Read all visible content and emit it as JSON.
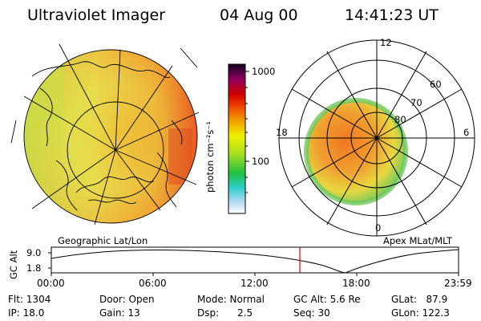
{
  "header": {
    "title": "Ultraviolet Imager",
    "date": "04 Aug 00",
    "time": "14:41:23 UT"
  },
  "colorbar": {
    "unit_label": "photon cm⁻²s⁻¹",
    "ticks": [
      "1000",
      "100"
    ]
  },
  "left_panel": {
    "caption": "Geographic Lat/Lon"
  },
  "right_panel": {
    "caption": "Apex MLat/MLT",
    "mlt_labels": [
      "12",
      "18",
      "6",
      "0"
    ],
    "mlat_labels": [
      "60",
      "70",
      "80"
    ]
  },
  "timeline": {
    "y_label": "GC Alt",
    "y_ticks": [
      "9.0",
      "1.8"
    ],
    "x_ticks": [
      "00:00",
      "06:00",
      "12:00",
      "18:00",
      "23:59"
    ],
    "marker_time": "14:41"
  },
  "status": {
    "flt": "Flt: 1304",
    "ip": "IP: 18.0",
    "door": "Door: Open",
    "gain": "Gain: 13",
    "mode": "Mode: Normal",
    "dsp": "Dsp:      2.5",
    "gc_alt": "GC Alt: 5.6 Re",
    "seq": "Seq: 30",
    "glat": "GLat:   87.9",
    "glon": "GLon: 122.3"
  }
}
